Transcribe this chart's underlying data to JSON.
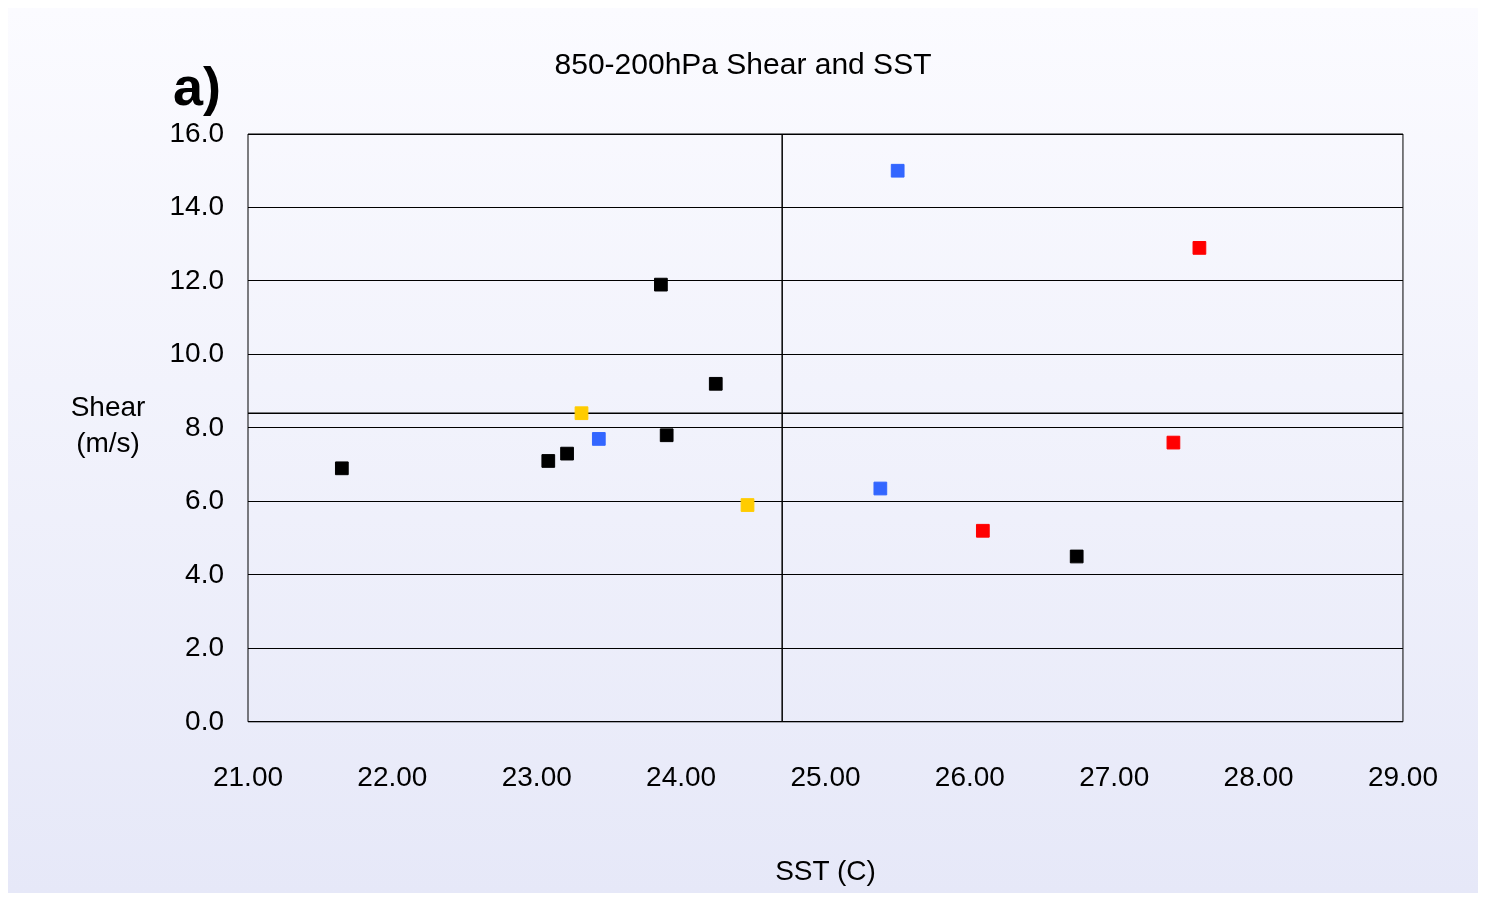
{
  "chart_data": {
    "type": "scatter",
    "title": "850-200hPa Shear and SST",
    "xlabel": "SST (C)",
    "ylabel": "Shear (m/s)",
    "annotations": [
      "a)"
    ],
    "xlim": [
      21,
      29
    ],
    "xticks": [
      {
        "value": 21,
        "label": "21.00"
      },
      {
        "value": 22,
        "label": "22.00"
      },
      {
        "value": 23,
        "label": "23.00"
      },
      {
        "value": 24,
        "label": "24.00"
      },
      {
        "value": 25,
        "label": "25.00"
      },
      {
        "value": 26,
        "label": "26.00"
      },
      {
        "value": 27,
        "label": "27.00"
      },
      {
        "value": 28,
        "label": "28.00"
      },
      {
        "value": 29,
        "label": "29.00"
      }
    ],
    "ylim": [
      0,
      16
    ],
    "yticks": [
      {
        "value": 0,
        "label": "0.0"
      },
      {
        "value": 2,
        "label": "2.0"
      },
      {
        "value": 4,
        "label": "4.0"
      },
      {
        "value": 6,
        "label": "6.0"
      },
      {
        "value": 8,
        "label": "8.0"
      },
      {
        "value": 10,
        "label": "10.0"
      },
      {
        "value": 12,
        "label": "12.0"
      },
      {
        "value": 14,
        "label": "14.0"
      },
      {
        "value": 16,
        "label": "16.0"
      }
    ],
    "grid": "y",
    "legend": false,
    "marker": "square",
    "ref_lines": [
      {
        "axis": "x",
        "value": 24.7,
        "color": "#000000"
      },
      {
        "axis": "y",
        "value": 8.4,
        "color": "#000000"
      }
    ],
    "series": [
      {
        "color": "#000000",
        "x": [
          21.65,
          23.08,
          23.21,
          23.86,
          23.9,
          24.24,
          26.74
        ],
        "values": [
          6.9,
          7.1,
          7.3,
          11.9,
          7.8,
          9.2,
          4.5
        ]
      },
      {
        "color": "#3366ff",
        "x": [
          25.5,
          23.43,
          25.38
        ],
        "values": [
          15.0,
          7.7,
          6.35
        ]
      },
      {
        "color": "#ffcc00",
        "x": [
          23.31,
          24.46
        ],
        "values": [
          8.4,
          5.9
        ]
      },
      {
        "color": "#ff0000",
        "x": [
          27.59,
          27.41,
          26.09
        ],
        "values": [
          12.9,
          7.6,
          5.2
        ]
      }
    ]
  }
}
